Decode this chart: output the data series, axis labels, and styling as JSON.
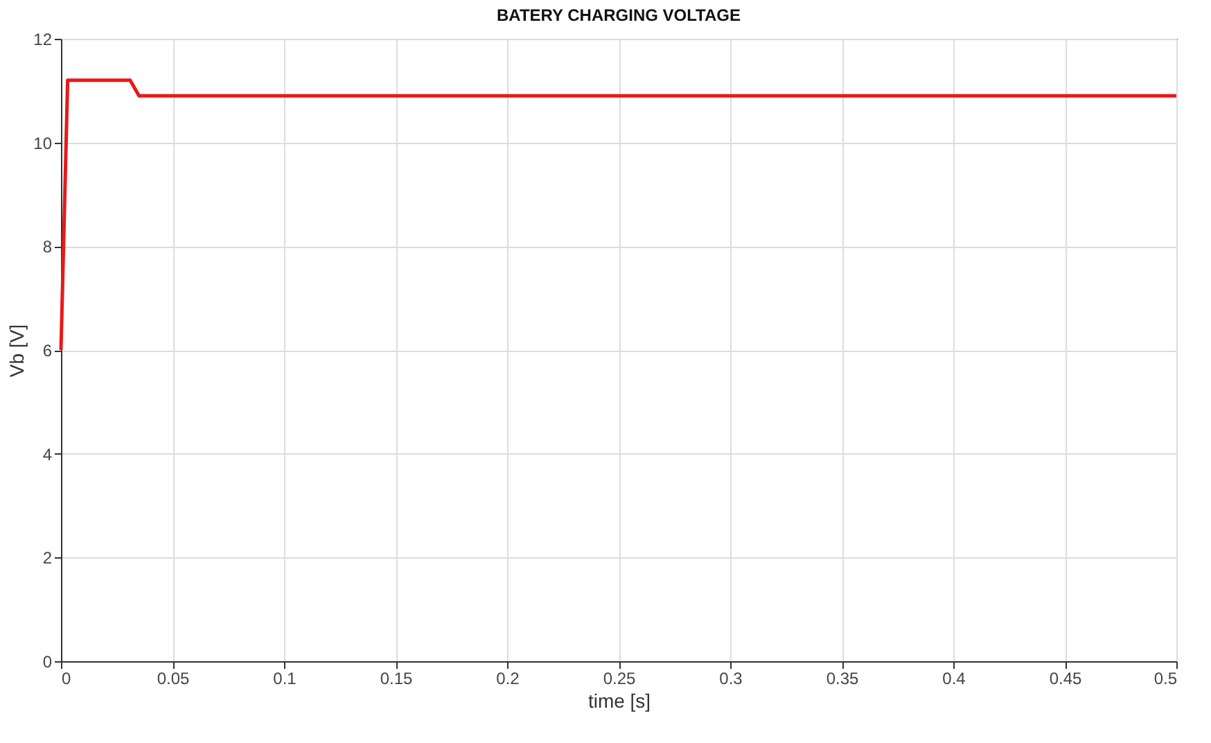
{
  "chart_data": {
    "type": "line",
    "title": "BATERY CHARGING VOLTAGE",
    "xlabel": "time  [s]",
    "ylabel": "Vb [V]",
    "x": [
      0,
      0.003,
      0.031,
      0.035,
      0.5
    ],
    "series": [
      {
        "color": "#e8191b",
        "values": [
          6,
          11.2,
          11.2,
          10.9,
          10.9
        ]
      }
    ],
    "xlim": [
      0,
      0.5
    ],
    "xticks": [
      0,
      0.05,
      0.1,
      0.15,
      0.2,
      0.25,
      0.3,
      0.35,
      0.4,
      0.45,
      0.5
    ],
    "ylim": [
      0,
      12
    ],
    "yticks": [
      0,
      2,
      4,
      6,
      8,
      10,
      12
    ],
    "grid": true,
    "legend": false,
    "marker": "none",
    "line_style": "solid"
  }
}
